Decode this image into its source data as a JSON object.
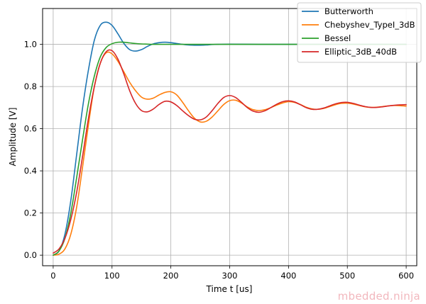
{
  "chart_data": {
    "type": "line",
    "title": "",
    "xlabel": "Time t [us]",
    "ylabel": "Amplitude [V]",
    "xlim": [
      -18,
      618
    ],
    "ylim": [
      -0.05,
      1.17
    ],
    "xticks": [
      0,
      100,
      200,
      300,
      400,
      500,
      600
    ],
    "yticks": [
      0.0,
      0.2,
      0.4,
      0.6,
      0.8,
      1.0
    ],
    "xtick_labels": [
      "0",
      "100",
      "200",
      "300",
      "400",
      "500",
      "600"
    ],
    "ytick_labels": [
      "0.0",
      "0.2",
      "0.4",
      "0.6",
      "0.8",
      "1.0"
    ],
    "grid": true,
    "legend_position": "top-right",
    "series": [
      {
        "name": "Butterworth",
        "color": "#1f77b4",
        "x": [
          0,
          10,
          20,
          30,
          40,
          50,
          60,
          70,
          80,
          90,
          100,
          110,
          120,
          130,
          140,
          150,
          160,
          170,
          180,
          190,
          200,
          210,
          220,
          230,
          240,
          250,
          260,
          270,
          280,
          300,
          350,
          400,
          450,
          500,
          550,
          600
        ],
        "y": [
          0.0,
          0.02,
          0.1,
          0.26,
          0.48,
          0.7,
          0.88,
          1.02,
          1.09,
          1.105,
          1.09,
          1.05,
          1.005,
          0.975,
          0.968,
          0.975,
          0.99,
          1.002,
          1.008,
          1.01,
          1.008,
          1.004,
          1.0,
          0.997,
          0.996,
          0.996,
          0.997,
          0.999,
          1.0,
          1.001,
          1.0,
          1.0,
          1.0,
          1.0,
          1.0,
          1.0
        ]
      },
      {
        "name": "Chebyshev_TypeI_3dB",
        "color": "#ff7f0e",
        "x": [
          0,
          10,
          20,
          30,
          40,
          50,
          60,
          70,
          80,
          90,
          100,
          110,
          120,
          130,
          140,
          150,
          160,
          170,
          180,
          190,
          200,
          210,
          220,
          230,
          240,
          250,
          260,
          270,
          280,
          290,
          300,
          310,
          320,
          330,
          340,
          350,
          360,
          370,
          380,
          390,
          400,
          410,
          420,
          430,
          440,
          450,
          460,
          470,
          480,
          490,
          500,
          510,
          520,
          530,
          540,
          550,
          560,
          570,
          580,
          590,
          600
        ],
        "y": [
          0.0,
          0.005,
          0.03,
          0.1,
          0.23,
          0.42,
          0.62,
          0.8,
          0.91,
          0.96,
          0.955,
          0.92,
          0.87,
          0.82,
          0.78,
          0.75,
          0.74,
          0.745,
          0.76,
          0.772,
          0.775,
          0.76,
          0.725,
          0.685,
          0.65,
          0.632,
          0.635,
          0.655,
          0.685,
          0.715,
          0.733,
          0.735,
          0.722,
          0.703,
          0.69,
          0.686,
          0.69,
          0.7,
          0.712,
          0.722,
          0.728,
          0.725,
          0.715,
          0.702,
          0.694,
          0.692,
          0.696,
          0.705,
          0.714,
          0.72,
          0.721,
          0.717,
          0.71,
          0.704,
          0.701,
          0.702,
          0.705,
          0.708,
          0.71,
          0.709,
          0.707
        ]
      },
      {
        "name": "Bessel",
        "color": "#2ca02c",
        "x": [
          0,
          10,
          20,
          30,
          40,
          50,
          60,
          70,
          80,
          90,
          100,
          110,
          120,
          130,
          140,
          150,
          160,
          170,
          180,
          200,
          250,
          300,
          350,
          400,
          450,
          500,
          550,
          600
        ],
        "y": [
          0.0,
          0.02,
          0.08,
          0.2,
          0.37,
          0.55,
          0.72,
          0.85,
          0.94,
          0.985,
          1.003,
          1.01,
          1.01,
          1.007,
          1.004,
          1.002,
          1.001,
          1.0,
          1.0,
          1.0,
          1.0,
          1.0,
          1.0,
          1.0,
          1.0,
          1.0,
          1.0,
          1.0
        ]
      },
      {
        "name": "Elliptic_3dB_40dB",
        "color": "#d62728",
        "x": [
          0,
          10,
          20,
          30,
          40,
          50,
          60,
          70,
          80,
          90,
          100,
          110,
          120,
          130,
          140,
          150,
          160,
          170,
          180,
          190,
          200,
          210,
          220,
          230,
          240,
          250,
          260,
          270,
          280,
          290,
          300,
          310,
          320,
          330,
          340,
          350,
          360,
          370,
          380,
          390,
          400,
          410,
          420,
          430,
          440,
          450,
          460,
          470,
          480,
          490,
          500,
          510,
          520,
          530,
          540,
          550,
          560,
          570,
          580,
          590,
          600
        ],
        "y": [
          0.01,
          0.03,
          0.08,
          0.17,
          0.3,
          0.47,
          0.65,
          0.8,
          0.91,
          0.965,
          0.97,
          0.93,
          0.86,
          0.78,
          0.72,
          0.686,
          0.68,
          0.693,
          0.715,
          0.73,
          0.727,
          0.71,
          0.685,
          0.662,
          0.645,
          0.642,
          0.655,
          0.685,
          0.72,
          0.748,
          0.757,
          0.748,
          0.725,
          0.7,
          0.683,
          0.678,
          0.685,
          0.7,
          0.716,
          0.728,
          0.732,
          0.727,
          0.714,
          0.7,
          0.692,
          0.692,
          0.698,
          0.708,
          0.718,
          0.724,
          0.725,
          0.72,
          0.712,
          0.705,
          0.701,
          0.701,
          0.704,
          0.708,
          0.711,
          0.713,
          0.714
        ]
      }
    ]
  },
  "watermark": "mbedded.ninja"
}
